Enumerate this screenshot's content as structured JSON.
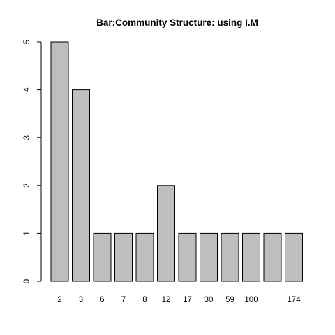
{
  "chart_data": {
    "type": "bar",
    "title": "Bar:Community Structure: using I.M",
    "xlabel": "",
    "ylabel": "",
    "categories": [
      "2",
      "3",
      "6",
      "7",
      "8",
      "12",
      "17",
      "30",
      "59",
      "100",
      "",
      "174"
    ],
    "values": [
      5,
      4,
      1,
      1,
      1,
      2,
      1,
      1,
      1,
      1,
      1,
      1
    ],
    "ylim": [
      0,
      5
    ],
    "yticks": [
      0,
      1,
      2,
      3,
      4,
      5
    ],
    "grid": false,
    "legend": "none",
    "colors": {
      "bar_fill": "#bebebe",
      "bar_stroke": "#000000",
      "axis": "#000000",
      "background": "#ffffff"
    }
  }
}
